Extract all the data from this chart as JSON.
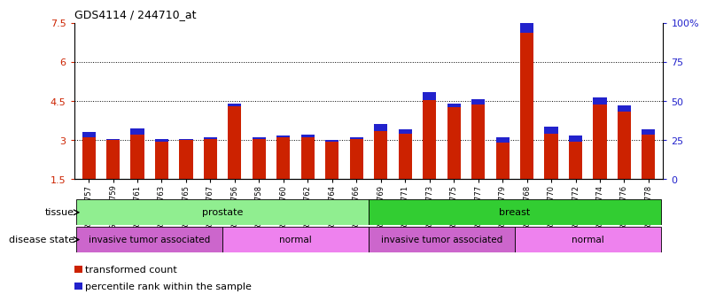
{
  "title": "GDS4114 / 244710_at",
  "samples": [
    "GSM662757",
    "GSM662759",
    "GSM662761",
    "GSM662763",
    "GSM662765",
    "GSM662767",
    "GSM662756",
    "GSM662758",
    "GSM662760",
    "GSM662762",
    "GSM662764",
    "GSM662766",
    "GSM662769",
    "GSM662771",
    "GSM662773",
    "GSM662775",
    "GSM662777",
    "GSM662779",
    "GSM662768",
    "GSM662770",
    "GSM662772",
    "GSM662774",
    "GSM662776",
    "GSM662778"
  ],
  "red_values": [
    3.1,
    3.0,
    3.2,
    2.95,
    3.0,
    3.05,
    4.3,
    3.05,
    3.1,
    3.1,
    2.95,
    3.05,
    3.35,
    3.25,
    4.55,
    4.25,
    4.35,
    2.9,
    7.1,
    3.25,
    2.95,
    4.35,
    4.1,
    3.2
  ],
  "blue_values": [
    0.2,
    0.05,
    0.25,
    0.08,
    0.05,
    0.07,
    0.1,
    0.07,
    0.08,
    0.1,
    0.07,
    0.07,
    0.28,
    0.15,
    0.28,
    0.15,
    0.22,
    0.22,
    0.85,
    0.28,
    0.22,
    0.28,
    0.22,
    0.22
  ],
  "ylim_left": [
    1.5,
    7.5
  ],
  "ylim_right": [
    0,
    100
  ],
  "yticks_left": [
    1.5,
    3.0,
    4.5,
    6.0,
    7.5
  ],
  "yticks_right": [
    0,
    25,
    50,
    75,
    100
  ],
  "ytick_labels_left": [
    "1.5",
    "3",
    "4.5",
    "6",
    "7.5"
  ],
  "ytick_labels_right": [
    "0",
    "25",
    "50",
    "75",
    "100%"
  ],
  "grid_lines": [
    3.0,
    4.5,
    6.0
  ],
  "tissue_groups": [
    {
      "label": "prostate",
      "start": 0,
      "end": 12,
      "color": "#90EE90"
    },
    {
      "label": "breast",
      "start": 12,
      "end": 24,
      "color": "#32CD32"
    }
  ],
  "disease_groups": [
    {
      "label": "invasive tumor associated",
      "start": 0,
      "end": 6,
      "color": "#CC66CC"
    },
    {
      "label": "normal",
      "start": 6,
      "end": 12,
      "color": "#EE82EE"
    },
    {
      "label": "invasive tumor associated",
      "start": 12,
      "end": 18,
      "color": "#CC66CC"
    },
    {
      "label": "normal",
      "start": 18,
      "end": 24,
      "color": "#EE82EE"
    }
  ],
  "bar_color_red": "#CC2200",
  "bar_color_blue": "#2222CC",
  "bar_width": 0.55,
  "legend_items": [
    {
      "label": "transformed count",
      "color": "#CC2200"
    },
    {
      "label": "percentile rank within the sample",
      "color": "#2222CC"
    }
  ],
  "tissue_label": "tissue",
  "disease_label": "disease state",
  "left_axis_color": "#CC2200",
  "right_axis_color": "#2222CC",
  "background_color": "#ffffff"
}
